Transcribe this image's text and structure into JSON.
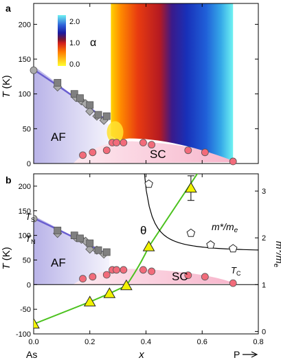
{
  "chart_data": [
    {
      "panel": "a",
      "type": "scatter+heatmap",
      "ylabel_var": "T",
      "ylabel_unit": " (K)",
      "ylim": [
        0,
        230
      ],
      "xlim": [
        0,
        0.8
      ],
      "yticks": [
        0,
        50,
        100,
        150,
        200
      ],
      "xticks": [
        0.0,
        0.2,
        0.4,
        0.6,
        0.8
      ],
      "region_labels": [
        "AF",
        "SC"
      ],
      "colorbar": {
        "label": "α",
        "ticks": [
          "2.0",
          "1.0",
          "0.0"
        ]
      },
      "heatmap_x_range": [
        0.275,
        0.71
      ],
      "series": [
        {
          "marker": "circle",
          "color": "#a9a9a9",
          "x": [
            0.0
          ],
          "y": [
            134
          ]
        },
        {
          "marker": "diamond",
          "color": "#a9a9a9",
          "x": [
            0.085,
            0.15,
            0.17,
            0.185,
            0.2,
            0.225,
            0.25
          ],
          "y": [
            110,
            95,
            90,
            86,
            75,
            68,
            62
          ]
        },
        {
          "marker": "square",
          "color": "#808080",
          "x": [
            0.085,
            0.145,
            0.165,
            0.2,
            0.23,
            0.26
          ],
          "y": [
            116,
            100,
            94,
            84,
            70,
            68
          ]
        },
        {
          "marker": "circle",
          "color": "#f26b7a",
          "x": [
            0.175,
            0.21,
            0.26,
            0.28,
            0.295,
            0.32,
            0.39,
            0.42,
            0.55,
            0.61,
            0.71
          ],
          "y": [
            12,
            16,
            19,
            30,
            30,
            30,
            30,
            27,
            19,
            16,
            3
          ]
        }
      ]
    },
    {
      "panel": "b",
      "type": "scatter+line",
      "ylabel_var": "T",
      "ylabel_unit": " (K)",
      "ylim": [
        -100,
        225
      ],
      "xlim": [
        0,
        0.8
      ],
      "yticks": [
        -100,
        -50,
        0,
        50,
        100,
        150,
        200
      ],
      "xticks": [
        "0.0",
        "0.2",
        "0.4",
        "0.6",
        "0.8"
      ],
      "xlabel": "x",
      "y2label": "m*/m",
      "y2label_sub": "e",
      "y2lim": [
        0,
        3.5
      ],
      "y2ticks": [
        0,
        1,
        2,
        3
      ],
      "region_labels": [
        "AF",
        "SC"
      ],
      "annotations": {
        "Ts": [
          "T",
          "S"
        ],
        "Tn": [
          "T",
          "N"
        ],
        "Tc": [
          "T",
          "C"
        ],
        "theta": "θ",
        "mass": [
          "m*/m",
          "e"
        ]
      },
      "x_endpoints": [
        "As",
        "P"
      ],
      "series": [
        {
          "marker": "circle",
          "color": "#a9a9a9",
          "x": [
            0.0
          ],
          "y": [
            134
          ]
        },
        {
          "marker": "diamond",
          "color": "#a9a9a9",
          "x": [
            0.085,
            0.15,
            0.17,
            0.185,
            0.2,
            0.225,
            0.25
          ],
          "y": [
            104,
            96,
            92,
            88,
            72,
            70,
            62
          ]
        },
        {
          "marker": "square",
          "color": "#808080",
          "x": [
            0.085,
            0.145,
            0.165,
            0.2,
            0.23,
            0.26
          ],
          "y": [
            110,
            100,
            94,
            84,
            70,
            66
          ]
        },
        {
          "marker": "circle",
          "color": "#f26b7a",
          "x": [
            0.175,
            0.21,
            0.26,
            0.28,
            0.295,
            0.32,
            0.39,
            0.42,
            0.55,
            0.61,
            0.71
          ],
          "y": [
            12,
            16,
            20,
            30,
            30,
            30,
            30,
            27,
            19,
            16,
            3
          ]
        },
        {
          "name": "θ",
          "marker": "triangle",
          "color": "#f2f200",
          "line_color": "#4cc21f",
          "x": [
            0.0,
            0.2,
            0.27,
            0.33,
            0.41,
            0.56
          ],
          "y": [
            -80,
            -35,
            -18,
            -2,
            77,
            196
          ],
          "err": [
            0,
            0,
            0,
            0,
            0,
            25
          ]
        },
        {
          "name": "m*/me",
          "axis": "right",
          "marker": "pentagon",
          "color": "#ffffff",
          "x": [
            0.41,
            0.56,
            0.63,
            0.71
          ],
          "y": [
            3.15,
            2.1,
            1.85,
            1.77
          ]
        }
      ]
    }
  ]
}
